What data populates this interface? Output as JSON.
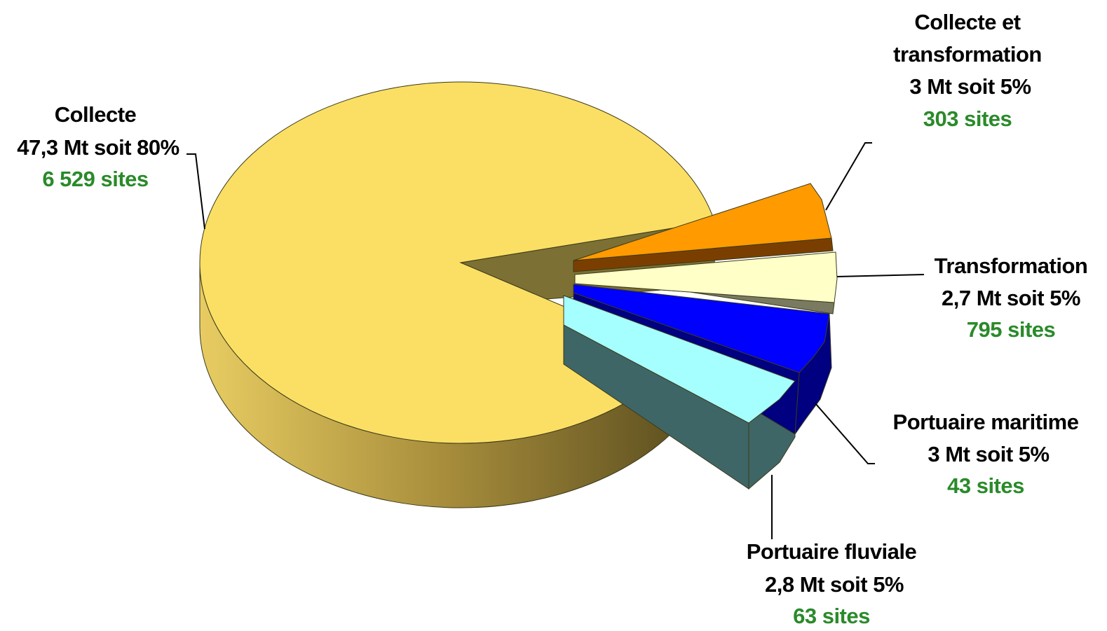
{
  "chart_data": {
    "type": "pie",
    "title": "",
    "three_d": true,
    "exploded": true,
    "slices": [
      {
        "name": "Collecte",
        "value_text": "47,3 Mt soit 80%",
        "tonnage_mt": 47.3,
        "percent": 80,
        "sites_text": "6 529 sites",
        "sites": 6529,
        "color": "#FBDF64",
        "side_color": "#7C7034"
      },
      {
        "name": "Collecte et transformation",
        "name_lines": [
          "Collecte et",
          "transformation"
        ],
        "value_text": "3 Mt soit 5%",
        "tonnage_mt": 3,
        "percent": 5,
        "sites_text": "303 sites",
        "sites": 303,
        "color": "#FF9A00",
        "side_color": "#7A3F00"
      },
      {
        "name": "Transformation",
        "value_text": "2,7 Mt soit 5%",
        "tonnage_mt": 2.7,
        "percent": 5,
        "sites_text": "795 sites",
        "sites": 795,
        "color": "#FFFFC8",
        "side_color": "#7A7A60"
      },
      {
        "name": "Portuaire maritime",
        "value_text": "3 Mt soit 5%",
        "tonnage_mt": 3,
        "percent": 5,
        "sites_text": "43 sites",
        "sites": 43,
        "color": "#0000FF",
        "side_color": "#000080"
      },
      {
        "name": "Portuaire fluviale",
        "value_text": "2,8 Mt soit  5%",
        "tonnage_mt": 2.8,
        "percent": 5,
        "sites_text": "63 sites",
        "sites": 63,
        "color": "#A6FFFF",
        "side_color": "#3F6666"
      }
    ],
    "legend": "none",
    "label_colors": {
      "text": "#000000",
      "sites": "#2A8A2A"
    }
  }
}
